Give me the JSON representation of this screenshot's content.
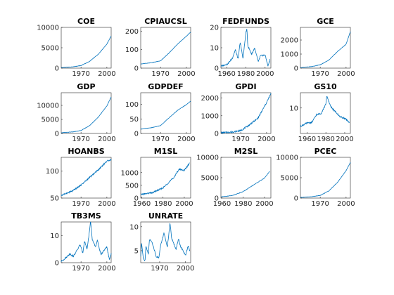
{
  "chart_data": [
    {
      "type": "line",
      "title": "COE",
      "color": "#0072BD",
      "x": [
        1947,
        1960,
        1970,
        1980,
        1990,
        2000,
        2005
      ],
      "y": [
        130,
        300,
        630,
        1660,
        3400,
        5900,
        7900
      ],
      "xlim": [
        1947,
        2005
      ],
      "ylim": [
        0,
        10000
      ],
      "xticks": [
        1970,
        2000
      ],
      "yticks": [
        0,
        5000,
        10000
      ]
    },
    {
      "type": "line",
      "title": "CPIAUCSL",
      "color": "#0072BD",
      "x": [
        1947,
        1960,
        1970,
        1980,
        1990,
        2000,
        2005
      ],
      "y": [
        22,
        30,
        39,
        82,
        131,
        172,
        195
      ],
      "xlim": [
        1947,
        2005
      ],
      "ylim": [
        0,
        220
      ],
      "xticks": [
        1970,
        2000
      ],
      "yticks": [
        0,
        100,
        200
      ]
    },
    {
      "type": "line",
      "title": "FEDFUNDS",
      "color": "#0072BD",
      "x": [
        1954,
        1958,
        1961,
        1966,
        1969,
        1972,
        1974,
        1977,
        1980,
        1981,
        1982,
        1986,
        1989,
        1993,
        1995,
        2000,
        2003,
        2005
      ],
      "y": [
        1.0,
        1.6,
        2.0,
        5.0,
        9.0,
        4.4,
        12.9,
        4.7,
        17.6,
        19.1,
        11.0,
        6.8,
        9.8,
        3.0,
        6.0,
        6.5,
        1.0,
        4.2
      ],
      "xlim": [
        1954,
        2006
      ],
      "ylim": [
        0,
        20
      ],
      "xticks": [
        1960,
        1980,
        2000
      ],
      "yticks": [
        0,
        10,
        20
      ]
    },
    {
      "type": "line",
      "title": "GCE",
      "color": "#0072BD",
      "x": [
        1947,
        1960,
        1970,
        1980,
        1990,
        2000,
        2005
      ],
      "y": [
        30,
        110,
        240,
        570,
        1180,
        1700,
        2600
      ],
      "xlim": [
        1947,
        2005
      ],
      "ylim": [
        0,
        2900
      ],
      "xticks": [
        1970,
        2000
      ],
      "yticks": [
        0,
        1000,
        2000
      ]
    },
    {
      "type": "line",
      "title": "GDP",
      "color": "#0072BD",
      "x": [
        1947,
        1960,
        1970,
        1980,
        1990,
        2000,
        2005
      ],
      "y": [
        240,
        530,
        1040,
        2800,
        5800,
        9800,
        13000
      ],
      "xlim": [
        1947,
        2005
      ],
      "ylim": [
        0,
        14500
      ],
      "xticks": [
        1970,
        2000
      ],
      "yticks": [
        0,
        5000,
        10000
      ]
    },
    {
      "type": "line",
      "title": "GDPDEF",
      "color": "#0072BD",
      "x": [
        1947,
        1960,
        1970,
        1980,
        1990,
        2000,
        2005
      ],
      "y": [
        15,
        20,
        27,
        54,
        80,
        99,
        111
      ],
      "xlim": [
        1947,
        2005
      ],
      "ylim": [
        0,
        140
      ],
      "xticks": [
        1970,
        2000
      ],
      "yticks": [
        0,
        50,
        100
      ]
    },
    {
      "type": "line",
      "title": "GPDI",
      "color": "#0072BD",
      "x": [
        1947,
        1960,
        1970,
        1980,
        1990,
        2000,
        2005
      ],
      "y": [
        40,
        80,
        160,
        480,
        860,
        1740,
        2250
      ],
      "xlim": [
        1947,
        2005
      ],
      "ylim": [
        0,
        2300
      ],
      "xticks": [
        1970,
        2000
      ],
      "yticks": [
        0,
        1000,
        2000
      ]
    },
    {
      "type": "line",
      "title": "GS10",
      "color": "#0072BD",
      "x": [
        1953,
        1960,
        1965,
        1970,
        1975,
        1980,
        1981,
        1985,
        1990,
        1995,
        2000,
        2005
      ],
      "y": [
        2.8,
        4.1,
        4.3,
        7.3,
        7.9,
        11.5,
        14.8,
        10.6,
        8.5,
        6.6,
        5.9,
        4.3
      ],
      "xlim": [
        1953,
        2006
      ],
      "ylim": [
        0,
        16
      ],
      "xticks": [
        1960,
        1980,
        2000
      ],
      "yticks": [
        10
      ]
    },
    {
      "type": "line",
      "title": "HOANBS",
      "color": "#0072BD",
      "x": [
        1947,
        1960,
        1970,
        1980,
        1990,
        2000,
        2005
      ],
      "y": [
        55,
        63,
        74,
        88,
        102,
        118,
        121
      ],
      "xlim": [
        1947,
        2005
      ],
      "ylim": [
        50,
        125
      ],
      "xticks": [
        1970,
        2000
      ],
      "yticks": [
        50,
        100
      ]
    },
    {
      "type": "line",
      "title": "M1SL",
      "color": "#0072BD",
      "x": [
        1959,
        1970,
        1980,
        1990,
        1995,
        2000,
        2005
      ],
      "y": [
        140,
        210,
        400,
        800,
        1130,
        1090,
        1370
      ],
      "xlim": [
        1959,
        2006
      ],
      "ylim": [
        0,
        1600
      ],
      "xticks": [
        1960,
        1980,
        2000
      ],
      "yticks": [
        0,
        500,
        1000
      ]
    },
    {
      "type": "line",
      "title": "M2SL",
      "color": "#0072BD",
      "x": [
        1959,
        1970,
        1980,
        1990,
        2000,
        2005
      ],
      "y": [
        290,
        630,
        1600,
        3270,
        4900,
        6600
      ],
      "xlim": [
        1959,
        2006
      ],
      "ylim": [
        0,
        10000
      ],
      "xticks": [
        1960,
        1980,
        2000
      ],
      "yticks": [
        0,
        5000,
        10000
      ]
    },
    {
      "type": "line",
      "title": "PCEC",
      "color": "#0072BD",
      "x": [
        1947,
        1960,
        1970,
        1980,
        1990,
        2000,
        2005
      ],
      "y": [
        160,
        330,
        650,
        1760,
        3830,
        6740,
        8750
      ],
      "xlim": [
        1947,
        2005
      ],
      "ylim": [
        0,
        10000
      ],
      "xticks": [
        1970,
        2000
      ],
      "yticks": [
        0,
        5000,
        10000
      ]
    },
    {
      "type": "line",
      "title": "TB3MS",
      "color": "#0072BD",
      "x": [
        1947,
        1953,
        1957,
        1961,
        1966,
        1969,
        1972,
        1974,
        1977,
        1980,
        1981,
        1983,
        1987,
        1989,
        1993,
        2000,
        2003,
        2005
      ],
      "y": [
        0.4,
        2.0,
        3.3,
        2.3,
        4.9,
        6.7,
        3.5,
        8.0,
        5.0,
        12.0,
        15.5,
        8.5,
        5.8,
        8.2,
        3.0,
        5.8,
        1.0,
        3.3
      ],
      "xlim": [
        1947,
        2005
      ],
      "ylim": [
        0,
        15
      ],
      "xticks": [
        1970,
        2000
      ],
      "yticks": [
        0,
        10
      ]
    },
    {
      "type": "line",
      "title": "UNRATE",
      "color": "#0072BD",
      "x": [
        1948,
        1949,
        1951,
        1953,
        1954,
        1957,
        1958,
        1961,
        1966,
        1969,
        1971,
        1975,
        1979,
        1982,
        1984,
        1989,
        1992,
        1994,
        2000,
        2003,
        2005
      ],
      "y": [
        3.8,
        6.6,
        3.5,
        2.9,
        6.0,
        4.2,
        7.3,
        6.9,
        3.8,
        3.5,
        6.0,
        8.7,
        5.8,
        10.8,
        7.5,
        5.3,
        7.5,
        6.0,
        4.0,
        6.0,
        5.0
      ],
      "xlim": [
        1948,
        2006
      ],
      "ylim": [
        2.5,
        11
      ],
      "xticks": [
        1970,
        2000
      ],
      "yticks": [
        5,
        10
      ]
    }
  ]
}
